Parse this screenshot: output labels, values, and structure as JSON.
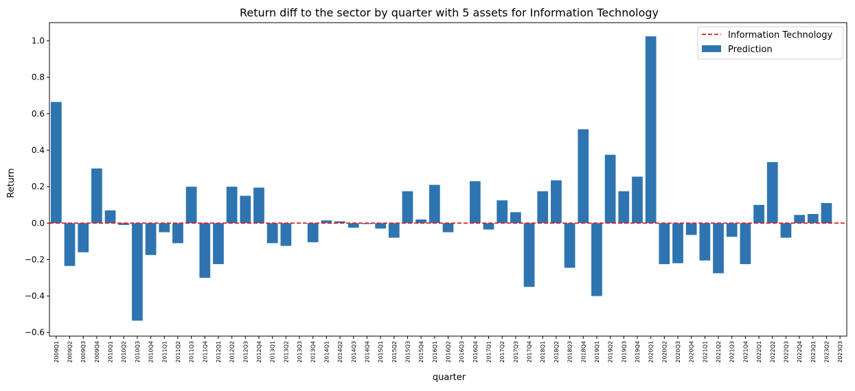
{
  "chart_data": {
    "type": "bar",
    "title": "Return diff to the sector by quarter with 5 assets for Information Technology",
    "xlabel": "quarter",
    "ylabel": "Return",
    "ylim": [
      -0.62,
      1.1
    ],
    "yticks": [
      "−0.6",
      "−0.4",
      "−0.2",
      "0.0",
      "0.2",
      "0.4",
      "0.6",
      "0.8",
      "1.0"
    ],
    "ytick_values": [
      -0.6,
      -0.4,
      -0.2,
      0.0,
      0.2,
      0.4,
      0.6,
      0.8,
      1.0
    ],
    "grid": false,
    "legend_position": "top-right",
    "reference_line": {
      "name": "Information Technology",
      "value": 0.0,
      "color": "#e41a1c",
      "style": "dashed"
    },
    "series": [
      {
        "name": "Prediction",
        "color": "#2e74b0",
        "values": [
          0.665,
          -0.235,
          -0.16,
          0.3,
          0.07,
          -0.01,
          -0.535,
          -0.175,
          -0.05,
          -0.11,
          0.2,
          -0.3,
          -0.225,
          0.2,
          0.15,
          0.195,
          -0.11,
          -0.125,
          0.0,
          -0.105,
          0.015,
          0.01,
          -0.025,
          -0.005,
          -0.03,
          -0.08,
          0.175,
          0.02,
          0.21,
          -0.05,
          0.0,
          0.23,
          -0.035,
          0.125,
          0.06,
          -0.35,
          0.175,
          0.235,
          -0.245,
          0.515,
          -0.4,
          0.375,
          0.175,
          0.255,
          1.025,
          -0.225,
          -0.22,
          -0.065,
          -0.205,
          -0.275,
          -0.075,
          -0.225,
          0.1,
          0.335,
          -0.08,
          0.045,
          0.05,
          0.11,
          0.0
        ]
      }
    ],
    "categories": [
      "2009Q1",
      "2009Q2",
      "2009Q3",
      "2009Q4",
      "2010Q1",
      "2010Q2",
      "2010Q3",
      "2010Q4",
      "2011Q1",
      "2011Q2",
      "2011Q3",
      "2011Q4",
      "2012Q1",
      "2012Q2",
      "2012Q3",
      "2012Q4",
      "2013Q1",
      "2013Q2",
      "2013Q3",
      "2013Q4",
      "2014Q1",
      "2014Q2",
      "2014Q3",
      "2014Q4",
      "2015Q1",
      "2015Q2",
      "2015Q3",
      "2015Q4",
      "2016Q1",
      "2016Q2",
      "2016Q3",
      "2016Q4",
      "2017Q1",
      "2017Q2",
      "2017Q3",
      "2017Q4",
      "2018Q1",
      "2018Q2",
      "2018Q3",
      "2018Q4",
      "2019Q1",
      "2019Q2",
      "2019Q3",
      "2019Q4",
      "2020Q1",
      "2020Q2",
      "2020Q3",
      "2020Q4",
      "2021Q1",
      "2021Q2",
      "2021Q3",
      "2021Q4",
      "2022Q1",
      "2022Q2",
      "2022Q3",
      "2022Q4",
      "2023Q1",
      "2023Q2",
      "2023Q3"
    ]
  }
}
